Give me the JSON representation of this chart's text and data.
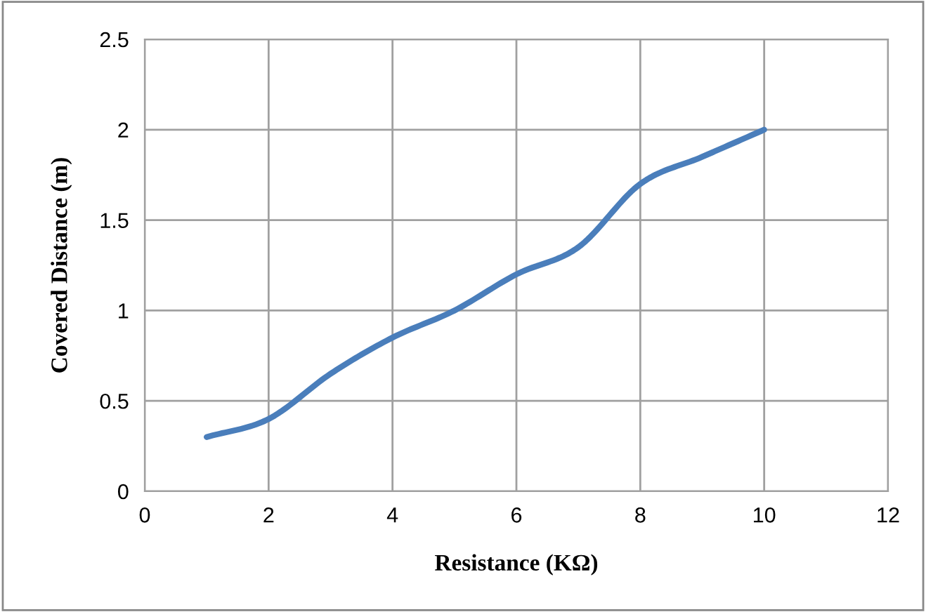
{
  "chart_data": {
    "type": "line",
    "xlabel": "Resistance (KΩ)",
    "ylabel": "Covered Distance (m)",
    "x": [
      1,
      2,
      3,
      4,
      5,
      6,
      7,
      8,
      9,
      10
    ],
    "series": [
      {
        "color": "#4a7ebb",
        "values": [
          0.3,
          0.4,
          0.65,
          0.85,
          1.0,
          1.2,
          1.35,
          1.7,
          1.85,
          2.0
        ]
      }
    ],
    "xlim": [
      0,
      12
    ],
    "xticks": [
      0,
      2,
      4,
      6,
      8,
      10,
      12
    ],
    "ylim": [
      0,
      2.5
    ],
    "yticks": [
      0,
      0.5,
      1,
      1.5,
      2,
      2.5
    ],
    "grid": true,
    "legend": false,
    "marker": "none",
    "line_style": "solid"
  }
}
